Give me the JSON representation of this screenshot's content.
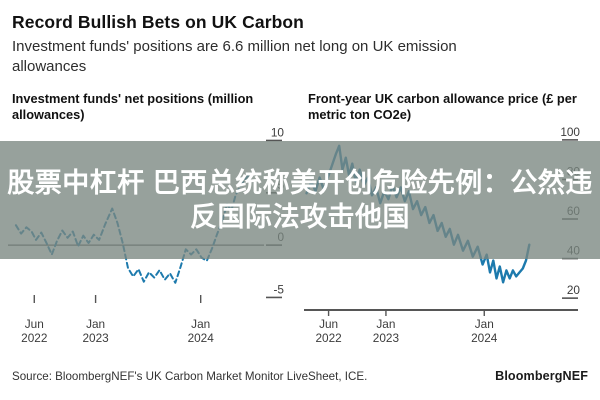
{
  "header": {
    "title": "Record Bullish Bets on UK Carbon",
    "subtitle": "Investment funds' positions are 6.6 million net long on UK emission allowances"
  },
  "overlay": {
    "band_color": "rgba(122,134,128,0.78)",
    "text_color": "#ffffff",
    "line1": "股票中杠杆 巴西总统称美开创危险先例：公然违",
    "line2": "反国际法攻击他国"
  },
  "footer": {
    "source": "Source: BloombergNEF's UK Carbon Market Monitor LiveSheet, ICE.",
    "logo": "BloombergNEF"
  },
  "chart_data": [
    {
      "type": "line",
      "title": "Investment funds' net positions (million allowances)",
      "line_style": "dashed",
      "color": "#1d7aad",
      "stroke_width": 2,
      "xlim": [
        0,
        29
      ],
      "ylim": [
        -6.2,
        11
      ],
      "y_ticks": [
        10,
        5,
        0,
        -5
      ],
      "zero_line": true,
      "baseline": false,
      "x_ticks": [
        {
          "t": 3,
          "line1": "Jun",
          "line2": "2022"
        },
        {
          "t": 10,
          "line1": "Jan",
          "line2": "2023"
        },
        {
          "t": 22,
          "line1": "Jan",
          "line2": "2024"
        }
      ],
      "latest_value_note": "6.6 million net long (Jun 2024)",
      "points": [
        [
          0.9,
          1.9
        ],
        [
          1.5,
          1.1
        ],
        [
          2.1,
          1.7
        ],
        [
          2.7,
          1.3
        ],
        [
          3.2,
          0.5
        ],
        [
          3.8,
          1.2
        ],
        [
          4.4,
          0.2
        ],
        [
          5,
          -0.9
        ],
        [
          5.6,
          0.4
        ],
        [
          6.2,
          1.4
        ],
        [
          6.8,
          0.7
        ],
        [
          7.4,
          1.3
        ],
        [
          8,
          -0.1
        ],
        [
          8.6,
          0.9
        ],
        [
          9.2,
          0.2
        ],
        [
          9.8,
          1
        ],
        [
          10.4,
          0.5
        ],
        [
          11.1,
          2
        ],
        [
          11.9,
          3.5
        ],
        [
          12.5,
          2.1
        ],
        [
          13.1,
          0.2
        ],
        [
          13.7,
          -2.2
        ],
        [
          14.3,
          -3
        ],
        [
          14.9,
          -2.3
        ],
        [
          15.5,
          -3.5
        ],
        [
          16.1,
          -2.6
        ],
        [
          16.7,
          -3.1
        ],
        [
          17.3,
          -2.4
        ],
        [
          17.9,
          -3.3
        ],
        [
          18.5,
          -2.7
        ],
        [
          19.1,
          -3.6
        ],
        [
          19.7,
          -2.1
        ],
        [
          20.3,
          -0.4
        ],
        [
          20.9,
          -0.9
        ],
        [
          21.5,
          -0.4
        ],
        [
          22.1,
          -1.2
        ],
        [
          22.7,
          -1.5
        ],
        [
          23.3,
          -0.3
        ],
        [
          23.9,
          1.1
        ],
        [
          24.5,
          2.4
        ],
        [
          25,
          3.9
        ],
        [
          25.5,
          3.3
        ],
        [
          26,
          4.8
        ],
        [
          26.5,
          5.6
        ],
        [
          27,
          6.2
        ],
        [
          27.4,
          6.6
        ]
      ]
    },
    {
      "type": "line",
      "title": "Front-year UK carbon allowance price (£ per metric ton CO2e)",
      "line_style": "solid",
      "color": "#1d7aad",
      "stroke_width": 2.4,
      "xlim": [
        0,
        31
      ],
      "ylim": [
        14,
        105
      ],
      "y_ticks": [
        100,
        80,
        60,
        40,
        20
      ],
      "zero_line": false,
      "baseline": true,
      "x_ticks": [
        {
          "t": 3,
          "line1": "Jun",
          "line2": "2022"
        },
        {
          "t": 10,
          "line1": "Jan",
          "line2": "2023"
        },
        {
          "t": 22,
          "line1": "Jan",
          "line2": "2024"
        }
      ],
      "points": [
        [
          0.3,
          73
        ],
        [
          0.9,
          79
        ],
        [
          1.4,
          74
        ],
        [
          1.9,
          81
        ],
        [
          2.4,
          75
        ],
        [
          2.9,
          81
        ],
        [
          3.4,
          87
        ],
        [
          3.9,
          93
        ],
        [
          4.3,
          97
        ],
        [
          4.7,
          85
        ],
        [
          5.1,
          91
        ],
        [
          5.5,
          82
        ],
        [
          5.9,
          88
        ],
        [
          6.3,
          79
        ],
        [
          6.8,
          85
        ],
        [
          7.3,
          77
        ],
        [
          7.8,
          81
        ],
        [
          8.3,
          72
        ],
        [
          8.8,
          76
        ],
        [
          9.3,
          68
        ],
        [
          9.8,
          74
        ],
        [
          10.3,
          70
        ],
        [
          10.8,
          77
        ],
        [
          11.3,
          71
        ],
        [
          11.8,
          76
        ],
        [
          12.3,
          69
        ],
        [
          12.8,
          74
        ],
        [
          13.3,
          65
        ],
        [
          13.8,
          69
        ],
        [
          14.3,
          62
        ],
        [
          14.8,
          66
        ],
        [
          15.3,
          58
        ],
        [
          15.8,
          62
        ],
        [
          16.3,
          54
        ],
        [
          16.8,
          58
        ],
        [
          17.3,
          51
        ],
        [
          17.8,
          55
        ],
        [
          18.3,
          47
        ],
        [
          18.8,
          52
        ],
        [
          19.4,
          44
        ],
        [
          20,
          49
        ],
        [
          20.6,
          41
        ],
        [
          21.2,
          46
        ],
        [
          21.8,
          37
        ],
        [
          22.3,
          42
        ],
        [
          22.7,
          33
        ],
        [
          23.1,
          39
        ],
        [
          23.5,
          30
        ],
        [
          23.9,
          36
        ],
        [
          24.3,
          28
        ],
        [
          24.7,
          34
        ],
        [
          25.1,
          30
        ],
        [
          25.5,
          34
        ],
        [
          25.9,
          31
        ],
        [
          26.3,
          33
        ],
        [
          26.7,
          35
        ],
        [
          27.1,
          39
        ],
        [
          27.5,
          47
        ]
      ]
    }
  ]
}
